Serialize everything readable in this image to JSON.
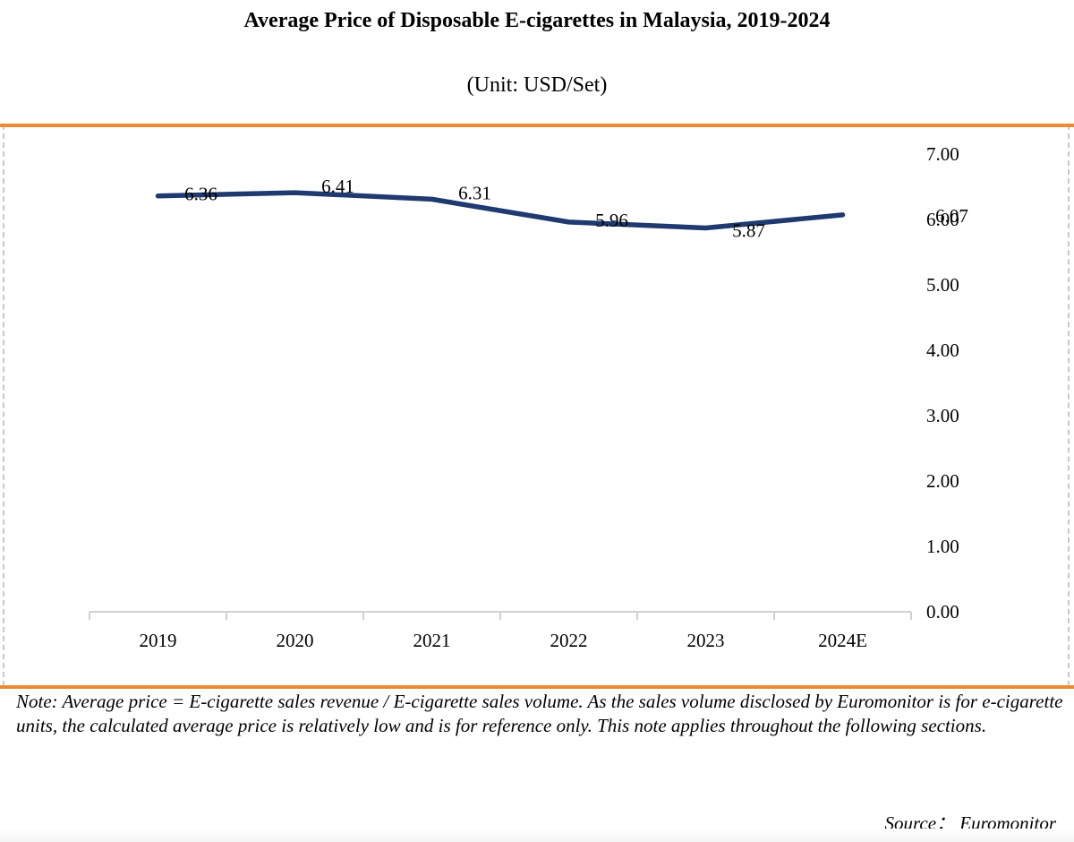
{
  "page": {
    "title": "Average Price of Disposable E-cigarettes in Malaysia, 2019-2024",
    "subtitle": "(Unit: USD/Set)",
    "note": "Note: Average price = E-cigarette sales revenue / E-cigarette sales volume. As the sales volume disclosed by Euromonitor is for e-cigarette units, the calculated average price is relatively low and is for reference only. This note applies throughout the following sections.",
    "source": "Source： Euromonitor",
    "colors": {
      "line": "#1f3a6e",
      "accent_rule": "#ed8936",
      "frame_border": "#c8c8c8",
      "axis": "#d0d0d0"
    }
  },
  "chart_data": {
    "type": "line",
    "title": "Average Price of Disposable E-cigarettes in Malaysia, 2019-2024",
    "subtitle": "(Unit: USD/Set)",
    "categories": [
      "2019",
      "2020",
      "2021",
      "2022",
      "2023",
      "2024E"
    ],
    "series": [
      {
        "name": "Average Price",
        "values": [
          6.36,
          6.41,
          6.31,
          5.96,
          5.87,
          6.07
        ],
        "labels": [
          "6.36",
          "6.41",
          "6.31",
          "5.96",
          "5.87",
          "6.07"
        ]
      }
    ],
    "xlabel": "",
    "ylabel": "USD/Set",
    "ylim": [
      0,
      7
    ],
    "yticks": [
      "0.00",
      "1.00",
      "2.00",
      "3.00",
      "4.00",
      "5.00",
      "6.00",
      "7.00"
    ],
    "y_axis_position": "right",
    "grid": false,
    "legend": "none"
  }
}
